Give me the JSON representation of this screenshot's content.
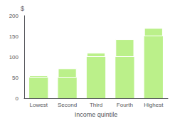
{
  "chart_data": {
    "type": "bar",
    "categories": [
      "Lowest",
      "Second",
      "Third",
      "Fourth",
      "Highest"
    ],
    "series": [
      {
        "color": "#bbf08a",
        "values": [
          50,
          50,
          100,
          100,
          150
        ]
      },
      {
        "color": "#bbf08a",
        "values": [
          5,
          22,
          10,
          43,
          20
        ]
      }
    ],
    "stacked": true,
    "xlabel": "Income quintile",
    "ylabel": "$",
    "ylim": [
      0,
      200
    ],
    "yticks": [
      0,
      50,
      100,
      150,
      200
    ],
    "grid": false
  }
}
